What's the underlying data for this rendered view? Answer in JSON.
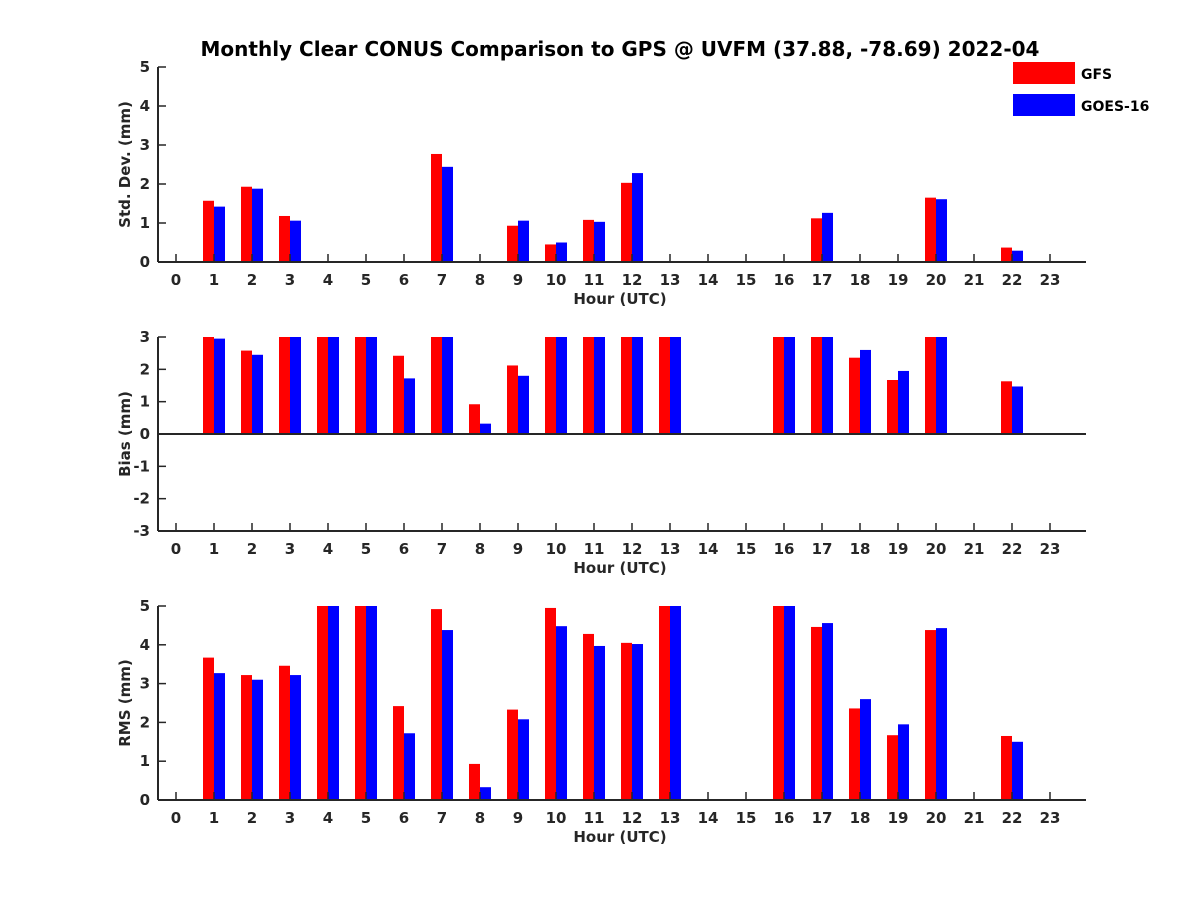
{
  "title": "Monthly Clear CONUS Comparison to GPS @ UVFM (37.88, -78.69) 2022-04",
  "legend": [
    {
      "name": "GFS",
      "color": "#ff0000"
    },
    {
      "name": "GOES-16",
      "color": "#0000ff"
    }
  ],
  "chart_data": [
    {
      "type": "bar",
      "ylabel": "Std. Dev. (mm)",
      "xlabel": "Hour (UTC)",
      "categories": [
        "0",
        "1",
        "2",
        "3",
        "4",
        "5",
        "6",
        "7",
        "8",
        "9",
        "10",
        "11",
        "12",
        "13",
        "14",
        "15",
        "16",
        "17",
        "18",
        "19",
        "20",
        "21",
        "22",
        "23"
      ],
      "ylim": [
        0,
        5
      ],
      "yticks": [
        "0",
        "1",
        "2",
        "3",
        "4",
        "5"
      ],
      "grid": false,
      "series": [
        {
          "name": "GFS",
          "color": "#ff0000",
          "values": [
            null,
            1.57,
            1.93,
            1.18,
            null,
            null,
            null,
            2.77,
            null,
            0.93,
            0.45,
            1.08,
            2.03,
            null,
            null,
            null,
            null,
            1.12,
            null,
            null,
            1.65,
            null,
            0.37,
            null
          ]
        },
        {
          "name": "GOES-16",
          "color": "#0000ff",
          "values": [
            null,
            1.42,
            1.88,
            1.06,
            null,
            null,
            null,
            2.44,
            null,
            1.06,
            0.5,
            1.03,
            2.28,
            null,
            null,
            null,
            null,
            1.26,
            null,
            null,
            1.61,
            null,
            0.29,
            null
          ]
        }
      ]
    },
    {
      "type": "bar",
      "ylabel": "Bias (mm)",
      "xlabel": "Hour (UTC)",
      "categories": [
        "0",
        "1",
        "2",
        "3",
        "4",
        "5",
        "6",
        "7",
        "8",
        "9",
        "10",
        "11",
        "12",
        "13",
        "14",
        "15",
        "16",
        "17",
        "18",
        "19",
        "20",
        "21",
        "22",
        "23"
      ],
      "ylim": [
        -3,
        3
      ],
      "yticks": [
        "-3",
        "-2",
        "-1",
        "0",
        "1",
        "2",
        "3"
      ],
      "grid": false,
      "series": [
        {
          "name": "GFS",
          "color": "#ff0000",
          "values": [
            null,
            3.0,
            2.58,
            3.0,
            3.0,
            3.0,
            2.42,
            3.0,
            0.92,
            2.12,
            3.0,
            3.0,
            3.0,
            3.0,
            null,
            null,
            3.0,
            3.0,
            2.36,
            1.67,
            3.0,
            null,
            1.63,
            null
          ]
        },
        {
          "name": "GOES-16",
          "color": "#0000ff",
          "values": [
            null,
            2.95,
            2.45,
            3.0,
            3.0,
            3.0,
            1.72,
            3.0,
            0.32,
            1.8,
            3.0,
            3.0,
            3.0,
            3.0,
            null,
            null,
            3.0,
            3.0,
            2.6,
            1.95,
            3.0,
            null,
            1.47,
            null
          ]
        }
      ]
    },
    {
      "type": "bar",
      "ylabel": "RMS (mm)",
      "xlabel": "Hour (UTC)",
      "categories": [
        "0",
        "1",
        "2",
        "3",
        "4",
        "5",
        "6",
        "7",
        "8",
        "9",
        "10",
        "11",
        "12",
        "13",
        "14",
        "15",
        "16",
        "17",
        "18",
        "19",
        "20",
        "21",
        "22",
        "23"
      ],
      "ylim": [
        0,
        5
      ],
      "yticks": [
        "0",
        "1",
        "2",
        "3",
        "4",
        "5"
      ],
      "grid": false,
      "series": [
        {
          "name": "GFS",
          "color": "#ff0000",
          "values": [
            null,
            3.67,
            3.22,
            3.46,
            5.0,
            5.0,
            2.42,
            4.92,
            0.93,
            2.33,
            4.95,
            4.28,
            4.05,
            5.0,
            null,
            null,
            5.0,
            4.46,
            2.36,
            1.67,
            4.38,
            null,
            1.65,
            null
          ]
        },
        {
          "name": "GOES-16",
          "color": "#0000ff",
          "values": [
            null,
            3.27,
            3.1,
            3.22,
            5.0,
            5.0,
            1.72,
            4.38,
            0.33,
            2.08,
            4.48,
            3.97,
            4.02,
            5.0,
            null,
            null,
            5.0,
            4.56,
            2.6,
            1.95,
            4.43,
            null,
            1.5,
            null
          ]
        }
      ]
    }
  ]
}
